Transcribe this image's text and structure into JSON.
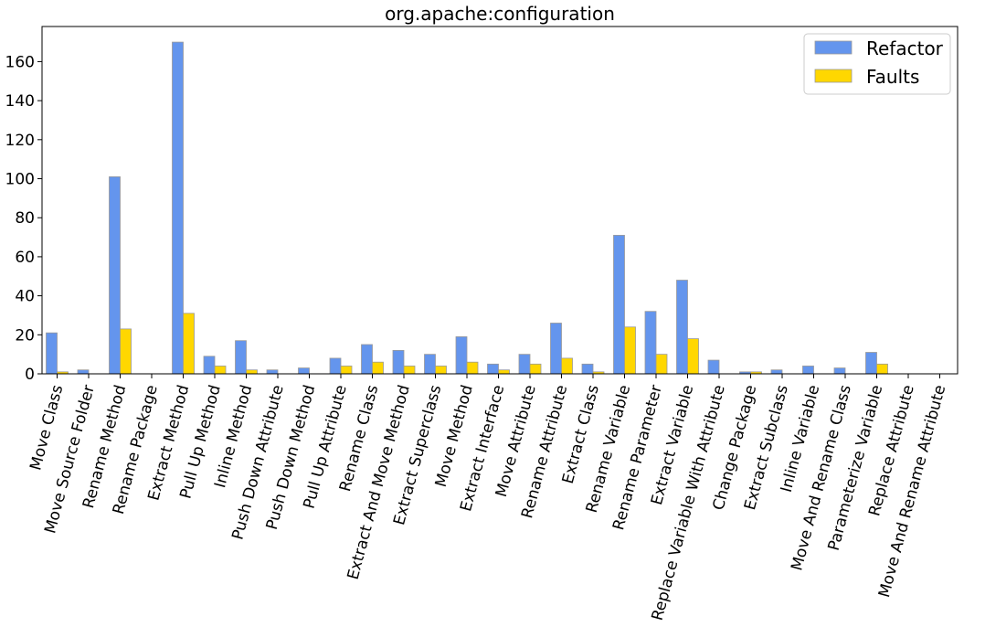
{
  "chart_data": {
    "type": "bar",
    "title": "org.apache:configuration",
    "xlabel": "",
    "ylabel": "",
    "ylim": [
      0,
      178
    ],
    "yticks": [
      0,
      20,
      40,
      60,
      80,
      100,
      120,
      140,
      160
    ],
    "grid": false,
    "legend_position": "top-right",
    "categories": [
      "Move Class",
      "Move Source Folder",
      "Rename Method",
      "Rename Package",
      "Extract Method",
      "Pull Up Method",
      "Inline Method",
      "Push Down Attribute",
      "Push Down Method",
      "Pull Up Attribute",
      "Rename Class",
      "Extract And Move Method",
      "Extract Superclass",
      "Move Method",
      "Extract Interface",
      "Move Attribute",
      "Rename Attribute",
      "Extract Class",
      "Rename Variable",
      "Rename Parameter",
      "Extract Variable",
      "Replace Variable With Attribute",
      "Change Package",
      "Extract Subclass",
      "Inline Variable",
      "Move And Rename Class",
      "Parameterize Variable",
      "Replace Attribute",
      "Move And Rename Attribute"
    ],
    "series": [
      {
        "name": "Refactor",
        "color": "#6495ed",
        "values": [
          21,
          2,
          101,
          0,
          170,
          9,
          17,
          2,
          3,
          8,
          15,
          12,
          10,
          19,
          5,
          10,
          26,
          5,
          71,
          32,
          48,
          7,
          1,
          2,
          4,
          3,
          11,
          0,
          0
        ]
      },
      {
        "name": "Faults",
        "color": "#ffd700",
        "values": [
          1,
          0,
          23,
          0,
          31,
          4,
          2,
          0,
          0,
          4,
          6,
          4,
          4,
          6,
          2,
          5,
          8,
          1,
          24,
          10,
          18,
          0,
          1,
          0,
          0,
          0,
          5,
          0,
          0
        ]
      }
    ]
  }
}
